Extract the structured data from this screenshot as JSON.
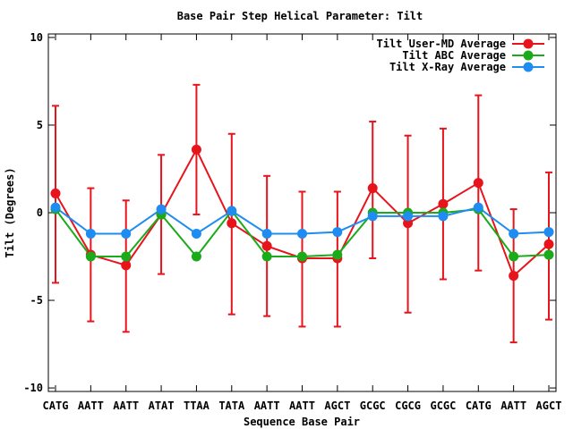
{
  "chart_data": {
    "type": "line",
    "title": "Base Pair Step Helical Parameter: Tilt",
    "xlabel": "Sequence Base Pair",
    "ylabel": "Tilt (Degrees)",
    "categories": [
      "CATG",
      "AATT",
      "AATT",
      "ATAT",
      "TTAA",
      "TATA",
      "AATT",
      "AATT",
      "AGCT",
      "GCGC",
      "CGCG",
      "GCGC",
      "CATG",
      "AATT",
      "AGCT"
    ],
    "ylim": [
      -10.2,
      10.2
    ],
    "yticks": [
      -10,
      -5,
      0,
      5,
      10
    ],
    "grid": false,
    "legend_position": "top-right",
    "series": [
      {
        "name": "Tilt User-MD Average",
        "color": "#e8141c",
        "values": [
          1.1,
          -2.4,
          -3.0,
          -0.1,
          3.6,
          -0.6,
          -1.9,
          -2.6,
          -2.6,
          1.4,
          -0.6,
          0.5,
          1.7,
          -3.6,
          -1.8
        ],
        "error_low": [
          -4.0,
          -6.2,
          -6.8,
          -3.5,
          -0.1,
          -5.8,
          -5.9,
          -6.5,
          -6.5,
          -2.6,
          -5.7,
          -3.8,
          -3.3,
          -7.4,
          -6.1
        ],
        "error_high": [
          6.1,
          1.4,
          0.7,
          3.3,
          7.3,
          4.5,
          2.1,
          1.2,
          1.2,
          5.2,
          4.4,
          4.8,
          6.7,
          0.2,
          2.3
        ]
      },
      {
        "name": "Tilt ABC Average",
        "color": "#1aaa1a",
        "values": [
          0.2,
          -2.5,
          -2.5,
          -0.1,
          -2.5,
          0.1,
          -2.5,
          -2.5,
          -2.4,
          0.0,
          0.0,
          0.0,
          0.2,
          -2.5,
          -2.4
        ]
      },
      {
        "name": "Tilt X-Ray Average",
        "color": "#1e8cf0",
        "values": [
          0.3,
          -1.2,
          -1.2,
          0.2,
          -1.2,
          0.1,
          -1.2,
          -1.2,
          -1.1,
          -0.2,
          -0.2,
          -0.2,
          0.3,
          -1.2,
          -1.1
        ]
      }
    ]
  }
}
